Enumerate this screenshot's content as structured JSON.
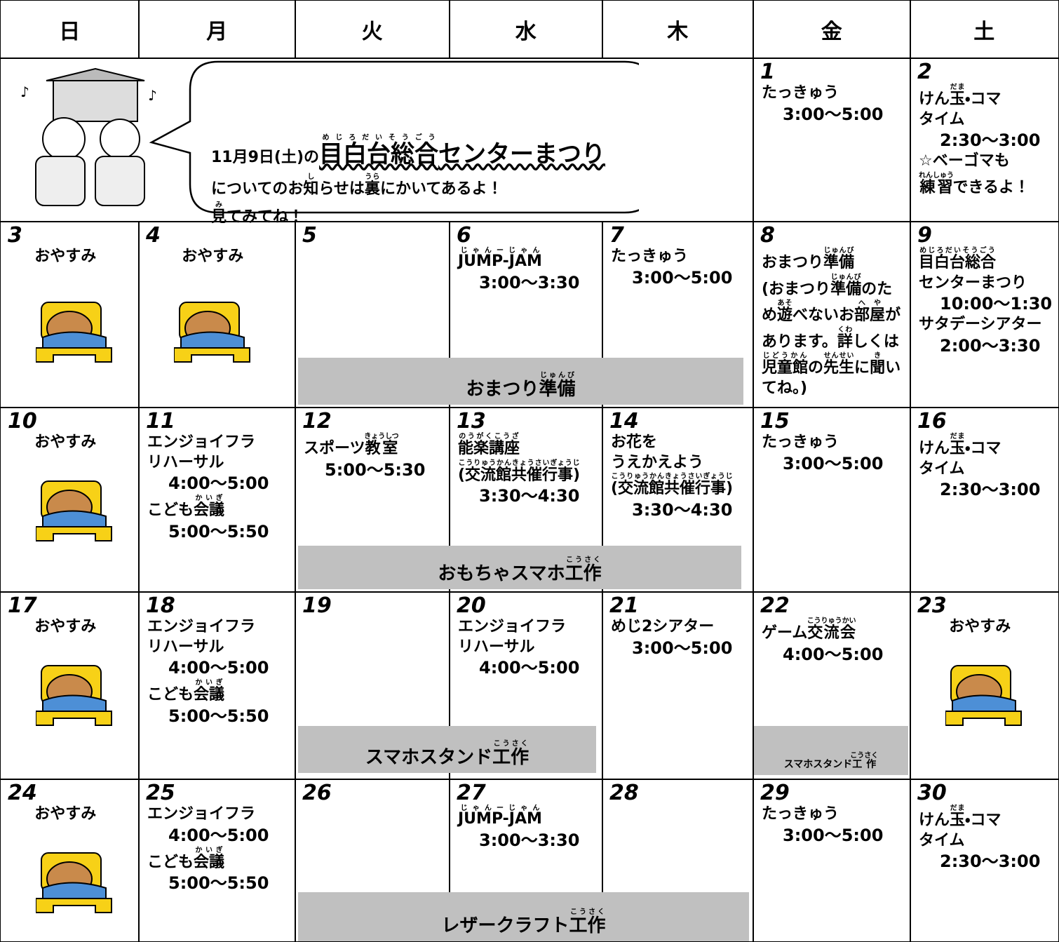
{
  "header": {
    "days": [
      "日",
      "月",
      "火",
      "水",
      "木",
      "金",
      "土"
    ]
  },
  "notice": {
    "lines": [
      [
        "11月9日(土)の",
        {
          "base": "目白台総合",
          "ruby": "めじろだいそうごう"
        },
        "センターまつり"
      ],
      [
        "についてのお",
        {
          "base": "知",
          "ruby": "し"
        },
        "らせは",
        {
          "base": "裏",
          "ruby": "うら"
        },
        "にかいてあるよ！"
      ],
      [
        {
          "base": "見",
          "ruby": "み"
        },
        "てみてね！"
      ]
    ]
  },
  "weeks": [
    {
      "cells": [
        {
          "date": "1",
          "lines": [
            [
              "たっきゅう"
            ],
            [
              "3:00～5:00"
            ]
          ]
        },
        {
          "date": "2",
          "lines": [
            [
              "けん",
              {
                "base": "玉",
                "ruby": "だま"
              },
              "・コマ"
            ],
            [
              "タイム"
            ],
            [
              "2:30～3:00"
            ],
            [
              "☆ベーゴマも"
            ],
            [
              {
                "base": "練習",
                "ruby": "れんしゅう"
              },
              "できるよ！"
            ]
          ]
        }
      ]
    },
    {
      "cells": [
        {
          "date": "3",
          "lines": [
            [
              "おやすみ"
            ]
          ]
        },
        {
          "date": "4",
          "lines": [
            [
              "おやすみ"
            ]
          ]
        },
        {
          "date": "5",
          "lines": []
        },
        {
          "date": "6",
          "lines": [
            [
              {
                "base": "JUMP-JAM",
                "ruby": "じゃんーじゃん"
              }
            ],
            [
              "3:00～3:30"
            ]
          ]
        },
        {
          "date": "7",
          "lines": [
            [
              "たっきゅう"
            ],
            [
              "3:00～5:00"
            ]
          ]
        },
        {
          "date": "8",
          "lines": [
            [
              "おまつり",
              {
                "base": "準備",
                "ruby": "じゅんび"
              }
            ],
            [
              "(おまつり",
              {
                "base": "準備",
                "ruby": "じゅんび"
              },
              "のた"
            ],
            [
              "め",
              {
                "base": "遊",
                "ruby": "あそ"
              },
              "べないお",
              {
                "base": "部屋",
                "ruby": "へや"
              },
              "が"
            ],
            [
              "あります。",
              {
                "base": "詳",
                "ruby": "くわ"
              },
              "しくは"
            ],
            [
              {
                "base": "児童館",
                "ruby": "じどうかん"
              },
              "の",
              {
                "base": "先生",
                "ruby": "せんせい"
              },
              "に",
              {
                "base": "聞",
                "ruby": "き"
              },
              "い"
            ],
            [
              "てね。)"
            ]
          ]
        },
        {
          "date": "9",
          "lines": [
            [
              {
                "base": "目白台総合",
                "ruby": "めじろだいそうごう"
              }
            ],
            [
              "センターまつり"
            ],
            [
              "10:00～1:30"
            ],
            [
              "サタデーシアター"
            ],
            [
              "2:00～3:30"
            ]
          ]
        }
      ]
    },
    {
      "cells": [
        {
          "date": "10",
          "lines": [
            [
              "おやすみ"
            ]
          ]
        },
        {
          "date": "11",
          "lines": [
            [
              "エンジョイフラ"
            ],
            [
              "リハーサル"
            ],
            [
              "4:00～5:00"
            ],
            [
              "こども",
              {
                "base": "会議",
                "ruby": "かいぎ"
              }
            ],
            [
              "5:00～5:50"
            ]
          ]
        },
        {
          "date": "12",
          "lines": [
            [
              "スポーツ",
              {
                "base": "教室",
                "ruby": "きょうしつ"
              }
            ],
            [
              "5:00～5:30"
            ]
          ]
        },
        {
          "date": "13",
          "lines": [
            [
              {
                "base": "能楽講座",
                "ruby": "のうがくこうざ"
              }
            ],
            [
              {
                "base": "(交流館共催行事)",
                "ruby": "こうりゅうかんきょうさいぎょうじ"
              }
            ],
            [
              "3:30～4:30"
            ]
          ]
        },
        {
          "date": "14",
          "lines": [
            [
              "お花を"
            ],
            [
              "うえかえよう"
            ],
            [
              {
                "base": "(交流館共催行事)",
                "ruby": "こうりゅうかんきょうさいぎょうじ"
              }
            ],
            [
              "3:30～4:30"
            ]
          ]
        },
        {
          "date": "15",
          "lines": [
            [
              "たっきゅう"
            ],
            [
              "3:00～5:00"
            ]
          ]
        },
        {
          "date": "16",
          "lines": [
            [
              "けん",
              {
                "base": "玉",
                "ruby": "だま"
              },
              "・コマ"
            ],
            [
              "タイム"
            ],
            [
              "2:30～3:00"
            ]
          ]
        }
      ]
    },
    {
      "cells": [
        {
          "date": "17",
          "lines": [
            [
              "おやすみ"
            ]
          ]
        },
        {
          "date": "18",
          "lines": [
            [
              "エンジョイフラ"
            ],
            [
              "リハーサル"
            ],
            [
              "4:00～5:00"
            ],
            [
              "こども",
              {
                "base": "会議",
                "ruby": "かいぎ"
              }
            ],
            [
              "5:00～5:50"
            ]
          ]
        },
        {
          "date": "19",
          "lines": []
        },
        {
          "date": "20",
          "lines": [
            [
              "エンジョイフラ"
            ],
            [
              "リハーサル"
            ],
            [
              "4:00～5:00"
            ]
          ]
        },
        {
          "date": "21",
          "lines": [
            [
              "めじ2シアター"
            ],
            [
              "3:00～5:00"
            ]
          ]
        },
        {
          "date": "22",
          "lines": [
            [
              "ゲーム",
              {
                "base": "交流会",
                "ruby": "こうりゅうかい"
              }
            ],
            [
              "4:00～5:00"
            ]
          ]
        },
        {
          "date": "23",
          "lines": [
            [
              "おやすみ"
            ]
          ]
        }
      ]
    },
    {
      "cells": [
        {
          "date": "24",
          "lines": [
            [
              "おやすみ"
            ]
          ]
        },
        {
          "date": "25",
          "lines": [
            [
              "エンジョイフラ"
            ],
            [
              "4:00～5:00"
            ],
            [
              "こども",
              {
                "base": "会議",
                "ruby": "かいぎ"
              }
            ],
            [
              "5:00～5:50"
            ]
          ]
        },
        {
          "date": "26",
          "lines": []
        },
        {
          "date": "27",
          "lines": [
            [
              {
                "base": "JUMP-JAM",
                "ruby": "じゃんーじゃん"
              }
            ],
            [
              "3:00～3:30"
            ]
          ]
        },
        {
          "date": "28",
          "lines": []
        },
        {
          "date": "29",
          "lines": [
            [
              "たっきゅう"
            ],
            [
              "3:00～5:00"
            ]
          ]
        },
        {
          "date": "30",
          "lines": [
            [
              "けん",
              {
                "base": "玉",
                "ruby": "だま"
              },
              "・コマ"
            ],
            [
              "タイム"
            ],
            [
              "2:30～3:00"
            ]
          ]
        }
      ]
    }
  ],
  "bands": [
    [
      "おまつり",
      {
        "base": "準備",
        "ruby": "じゅんび"
      }
    ],
    [
      "おもちゃスマホ",
      {
        "base": "工作",
        "ruby": "こうさく"
      }
    ],
    [
      "スマホスタンド",
      {
        "base": "工作",
        "ruby": "こうさく"
      }
    ],
    [
      "スマホスタンド",
      {
        "base": "工作",
        "ruby": "こうさく"
      }
    ],
    [
      "レザークラフト",
      {
        "base": "工作",
        "ruby": "こうさく"
      }
    ]
  ]
}
